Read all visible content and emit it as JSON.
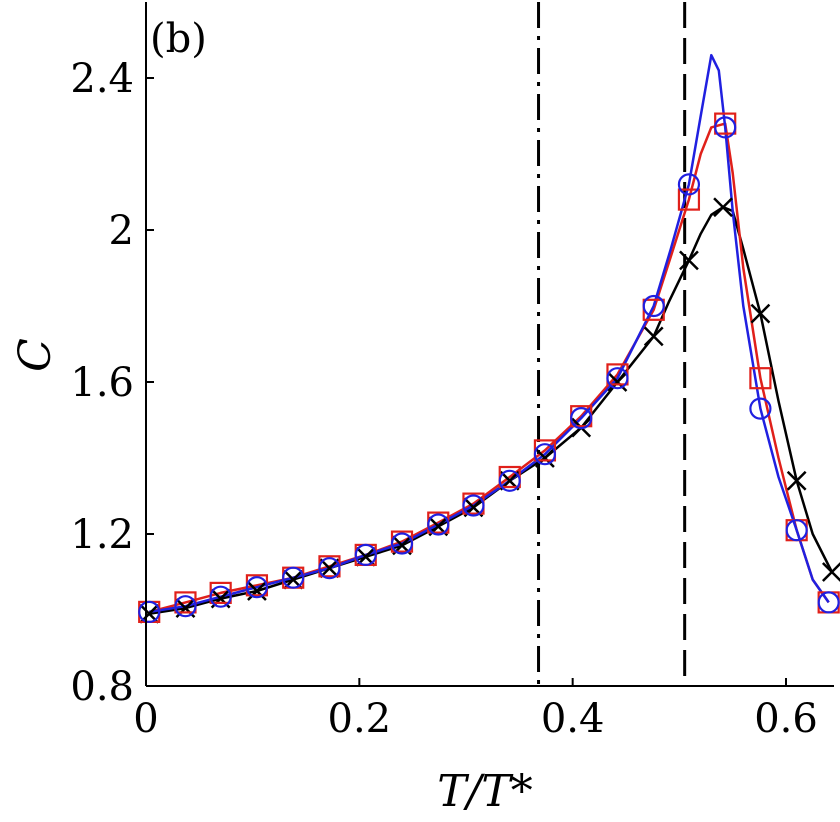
{
  "chart_data": {
    "type": "line",
    "panel_label": "(b)",
    "xlabel": "T/T*",
    "ylabel": "C",
    "xlim": [
      0,
      0.645
    ],
    "ylim": [
      0.8,
      2.6
    ],
    "xticks": [
      0,
      0.2,
      0.4,
      0.6
    ],
    "xtick_labels": [
      "0",
      "0.2",
      "0.4",
      "0.6"
    ],
    "yticks": [
      0.8,
      1.2,
      1.6,
      2.0,
      2.4
    ],
    "ytick_labels": [
      "0.8",
      "1.2",
      "1.6",
      "2",
      "2.4"
    ],
    "grid": false,
    "vlines": [
      {
        "x": 0.368,
        "style": "dashdot",
        "color": "#000000"
      },
      {
        "x": 0.505,
        "style": "dashed",
        "color": "#000000"
      }
    ],
    "series": [
      {
        "color": "#000000",
        "marker": "x",
        "x": [
          0.003,
          0.037,
          0.07,
          0.104,
          0.138,
          0.172,
          0.206,
          0.24,
          0.274,
          0.307,
          0.341,
          0.374,
          0.408,
          0.442,
          0.476,
          0.509,
          0.541,
          0.576,
          0.61,
          0.643
        ],
        "y": [
          0.99,
          1.005,
          1.03,
          1.05,
          1.08,
          1.11,
          1.14,
          1.17,
          1.22,
          1.27,
          1.34,
          1.4,
          1.48,
          1.6,
          1.72,
          1.92,
          2.06,
          1.78,
          1.34,
          1.1
        ],
        "line_x": [
          0.003,
          0.037,
          0.07,
          0.104,
          0.138,
          0.172,
          0.206,
          0.24,
          0.274,
          0.307,
          0.341,
          0.374,
          0.408,
          0.442,
          0.476,
          0.49,
          0.509,
          0.52,
          0.53,
          0.541,
          0.55,
          0.56,
          0.576,
          0.593,
          0.61,
          0.625,
          0.643
        ],
        "line_y": [
          0.99,
          1.005,
          1.03,
          1.05,
          1.08,
          1.11,
          1.14,
          1.17,
          1.22,
          1.27,
          1.34,
          1.4,
          1.48,
          1.6,
          1.72,
          1.81,
          1.92,
          1.99,
          2.04,
          2.06,
          2.05,
          1.95,
          1.78,
          1.55,
          1.34,
          1.2,
          1.1
        ]
      },
      {
        "color": "#e0201a",
        "marker": "square",
        "x": [
          0.003,
          0.037,
          0.07,
          0.104,
          0.138,
          0.172,
          0.206,
          0.24,
          0.274,
          0.307,
          0.341,
          0.374,
          0.408,
          0.442,
          0.476,
          0.509,
          0.543,
          0.576,
          0.61,
          0.64
        ],
        "y": [
          0.995,
          1.02,
          1.045,
          1.065,
          1.085,
          1.115,
          1.145,
          1.18,
          1.23,
          1.28,
          1.35,
          1.42,
          1.51,
          1.62,
          1.79,
          2.08,
          2.28,
          1.61,
          1.21,
          1.02
        ],
        "line_x": [
          0.003,
          0.037,
          0.07,
          0.104,
          0.138,
          0.172,
          0.206,
          0.24,
          0.274,
          0.307,
          0.341,
          0.374,
          0.408,
          0.442,
          0.476,
          0.492,
          0.509,
          0.52,
          0.53,
          0.543,
          0.55,
          0.56,
          0.576,
          0.593,
          0.61,
          0.625,
          0.64
        ],
        "line_y": [
          0.995,
          1.02,
          1.045,
          1.065,
          1.085,
          1.115,
          1.145,
          1.18,
          1.23,
          1.28,
          1.35,
          1.42,
          1.51,
          1.62,
          1.79,
          1.93,
          2.08,
          2.2,
          2.27,
          2.28,
          2.15,
          1.9,
          1.61,
          1.4,
          1.21,
          1.08,
          1.02
        ]
      },
      {
        "color": "#2020e0",
        "marker": "circle",
        "x": [
          0.003,
          0.037,
          0.07,
          0.104,
          0.138,
          0.172,
          0.206,
          0.24,
          0.274,
          0.307,
          0.341,
          0.374,
          0.408,
          0.442,
          0.476,
          0.509,
          0.543,
          0.576,
          0.61,
          0.64
        ],
        "y": [
          0.995,
          1.01,
          1.035,
          1.06,
          1.085,
          1.11,
          1.145,
          1.175,
          1.225,
          1.275,
          1.34,
          1.41,
          1.505,
          1.61,
          1.8,
          2.12,
          2.27,
          1.53,
          1.21,
          1.02
        ],
        "line_x": [
          0.003,
          0.037,
          0.07,
          0.104,
          0.138,
          0.172,
          0.206,
          0.24,
          0.274,
          0.307,
          0.341,
          0.374,
          0.408,
          0.442,
          0.476,
          0.492,
          0.509,
          0.52,
          0.53,
          0.537,
          0.543,
          0.55,
          0.56,
          0.576,
          0.593,
          0.61,
          0.625,
          0.64
        ],
        "line_y": [
          0.995,
          1.01,
          1.035,
          1.06,
          1.085,
          1.11,
          1.145,
          1.175,
          1.225,
          1.275,
          1.34,
          1.41,
          1.505,
          1.61,
          1.8,
          1.95,
          2.12,
          2.3,
          2.46,
          2.42,
          2.27,
          2.05,
          1.8,
          1.53,
          1.35,
          1.21,
          1.08,
          1.02
        ]
      }
    ]
  }
}
